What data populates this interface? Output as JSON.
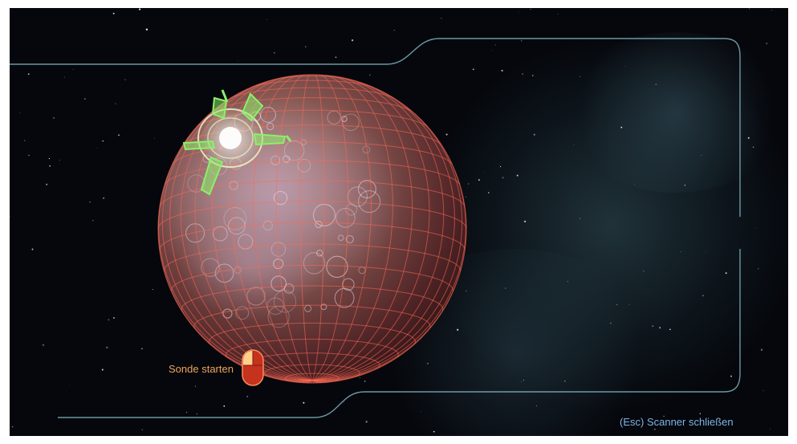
{
  "hud": {
    "launch_probe_label": "Sonde starten",
    "close_scanner_label": "(Esc) Scanner schließen"
  },
  "colors": {
    "frame": "#8fc5d8",
    "grid": "#ff6a55",
    "probe_label": "#f0a35a",
    "close_label": "#7fb4e6",
    "reticle": "#8af06a"
  },
  "icons": {
    "mouse": "left-mouse-button-icon"
  }
}
